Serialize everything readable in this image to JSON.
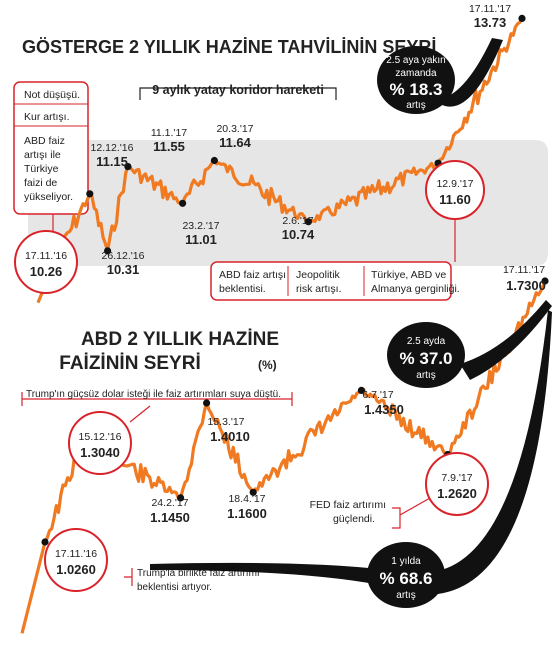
{
  "colors": {
    "line": "#f07a22",
    "accent": "#d9232a",
    "band": "#e6e6e6",
    "text": "#222222",
    "bubble": "#111111"
  },
  "chart_data": [
    {
      "type": "line",
      "title": "GÖSTERGE 2 YILLIK HAZİNE TAHVİLİNİN SEYRİ",
      "unit": "",
      "ylim": [
        9.0,
        14.0
      ],
      "series": [
        {
          "name": "",
          "values": [
            {
              "x": "17.11.'16",
              "y": 10.26
            },
            {
              "x": "12.12.'16",
              "y": 11.15
            },
            {
              "x": "26.12.'16",
              "y": 10.31
            },
            {
              "x": "11.1.'17",
              "y": 11.55
            },
            {
              "x": "23.2.'17",
              "y": 11.01
            },
            {
              "x": "20.3.'17",
              "y": 11.64
            },
            {
              "x": "2.6.'17",
              "y": 10.74
            },
            {
              "x": "12.9.'17",
              "y": 11.6
            },
            {
              "x": "17.11.'17",
              "y": 13.73
            }
          ]
        }
      ],
      "band_label": "9 aylık yatay koridor hareketi",
      "labels": [
        {
          "date": "17.11.'16",
          "value": "10.26"
        },
        {
          "date": "12.12.'16",
          "value": "11.15"
        },
        {
          "date": "26.12.'16",
          "value": "10.31"
        },
        {
          "date": "11.1.'17",
          "value": "11.55"
        },
        {
          "date": "23.2.'17",
          "value": "11.01"
        },
        {
          "date": "20.3.'17",
          "value": "11.64"
        },
        {
          "date": "2.6.'17",
          "value": "10.74"
        },
        {
          "date": "12.9.'17",
          "value": "11.60"
        },
        {
          "date": "17.11.'17",
          "value": "13.73"
        }
      ],
      "bubble": {
        "line1": "2.5 aya yakın",
        "line2": "zamanda",
        "value": "% 18.3",
        "unit": "artış"
      },
      "note_lines": [
        "Not düşüşü.",
        "Kur artışı.",
        "ABD faiz",
        "artışı ile",
        "Türkiye",
        "faizi de",
        "yükseliyor."
      ],
      "reasons": [
        {
          "line1": "ABD faiz artışı",
          "line2": "beklentisi."
        },
        {
          "line1": "Jeopolitik",
          "line2": "risk artışı."
        },
        {
          "line1": "Türkiye, ABD ve",
          "line2": "Almanya gerginliği."
        }
      ]
    },
    {
      "type": "line",
      "title_line1": "ABD 2 YILLIK HAZİNE",
      "title_line2": "FAİZİNİN SEYRİ",
      "unit": "(%)",
      "ylim": [
        0.6,
        1.8
      ],
      "series": [
        {
          "name": "",
          "values": [
            {
              "x": "17.11.'16",
              "y": 1.026
            },
            {
              "x": "15.12.'16",
              "y": 1.304
            },
            {
              "x": "24.2.'17",
              "y": 1.145
            },
            {
              "x": "15.3.'17",
              "y": 1.401
            },
            {
              "x": "18.4.'17",
              "y": 1.16
            },
            {
              "x": "6.7.'17",
              "y": 1.435
            },
            {
              "x": "7.9.'17",
              "y": 1.262
            },
            {
              "x": "17.11.'17",
              "y": 1.73
            }
          ]
        }
      ],
      "labels": [
        {
          "date": "17.11.'16",
          "value": "1.0260"
        },
        {
          "date": "15.12.'16",
          "value": "1.3040"
        },
        {
          "date": "24.2.'17",
          "value": "1.1450"
        },
        {
          "date": "15.3.'17",
          "value": "1.4010"
        },
        {
          "date": "18.4.'17",
          "value": "1.1600"
        },
        {
          "date": "6.7.'17",
          "value": "1.4350"
        },
        {
          "date": "7.9.'17",
          "value": "1.2620"
        },
        {
          "date": "17.11.'17",
          "value": "1.7300"
        }
      ],
      "bubble_a": {
        "line1": "2.5 ayda",
        "value": "% 37.0",
        "unit": "artış"
      },
      "bubble_b": {
        "line1": "1 yılda",
        "value": "% 68.6",
        "unit": "artış"
      },
      "annotations": {
        "trump_weak_dollar": "Trump'ın güçsüz dolar isteği ile faiz artırımları suya düştü.",
        "fed_line1": "FED faiz artırımı",
        "fed_line2": "güçlendi.",
        "trump_rate_line1": "Trump'la birlikte faiz artırımı",
        "trump_rate_line2": "beklentisi artıyor."
      }
    }
  ]
}
